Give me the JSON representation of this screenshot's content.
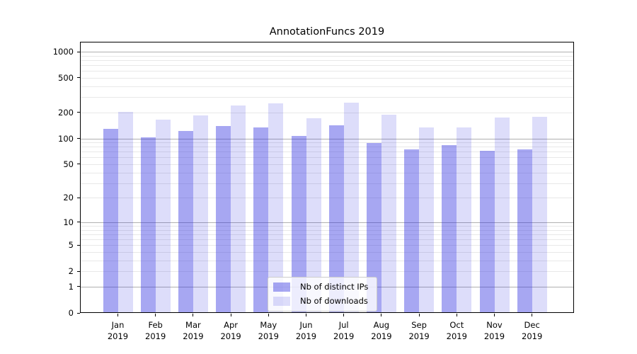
{
  "chart_data": {
    "type": "bar",
    "title": "AnnotationFuncs 2019",
    "x_axis": {
      "months": [
        "Jan",
        "Feb",
        "Mar",
        "Apr",
        "May",
        "Jun",
        "Jul",
        "Aug",
        "Sep",
        "Oct",
        "Nov",
        "Dec"
      ],
      "year_label": "2019"
    },
    "y_axis": {
      "scale": "log1p",
      "lim": [
        0,
        1300
      ],
      "ticks": [
        {
          "label": "1000",
          "value": 1000
        },
        {
          "label": "500",
          "value": 500
        },
        {
          "label": "200",
          "value": 200
        },
        {
          "label": "100",
          "value": 100
        },
        {
          "label": "50",
          "value": 50
        },
        {
          "label": "20",
          "value": 20
        },
        {
          "label": "10",
          "value": 10
        },
        {
          "label": "5",
          "value": 5
        },
        {
          "label": "2",
          "value": 2
        },
        {
          "label": "1",
          "value": 1
        },
        {
          "label": "0",
          "value": 0
        }
      ],
      "major_gridlines": [
        1,
        10,
        100,
        1000
      ],
      "minor_gridlines": [
        2,
        3,
        4,
        5,
        6,
        7,
        8,
        9,
        20,
        30,
        40,
        50,
        60,
        70,
        80,
        90,
        200,
        300,
        400,
        500,
        600,
        700,
        800,
        900
      ]
    },
    "series": [
      {
        "name": "Nb of distinct IPs",
        "color": "#2d2de1",
        "opacity": 0.42,
        "values": [
          128,
          103,
          121,
          139,
          134,
          107,
          141,
          89,
          75,
          83,
          72,
          75
        ]
      },
      {
        "name": "Nb of downloads",
        "color": "#2d2de1",
        "opacity": 0.16,
        "values": [
          204,
          166,
          186,
          239,
          255,
          172,
          258,
          187,
          133,
          133,
          175,
          178
        ]
      }
    ],
    "legend": {
      "position": "lower center",
      "items": [
        "Nb of distinct IPs",
        "Nb of downloads"
      ]
    },
    "grid": true
  },
  "colors": {
    "background": "#ffffff",
    "axis": "#000000",
    "grid_major": "#b0b0b0",
    "grid_minor": "#e8e8e8",
    "legend_border": "#cccccc",
    "bar_distinct_ips_apparent": "#a7a7f2",
    "bar_downloads_apparent": "#dddDfa"
  }
}
